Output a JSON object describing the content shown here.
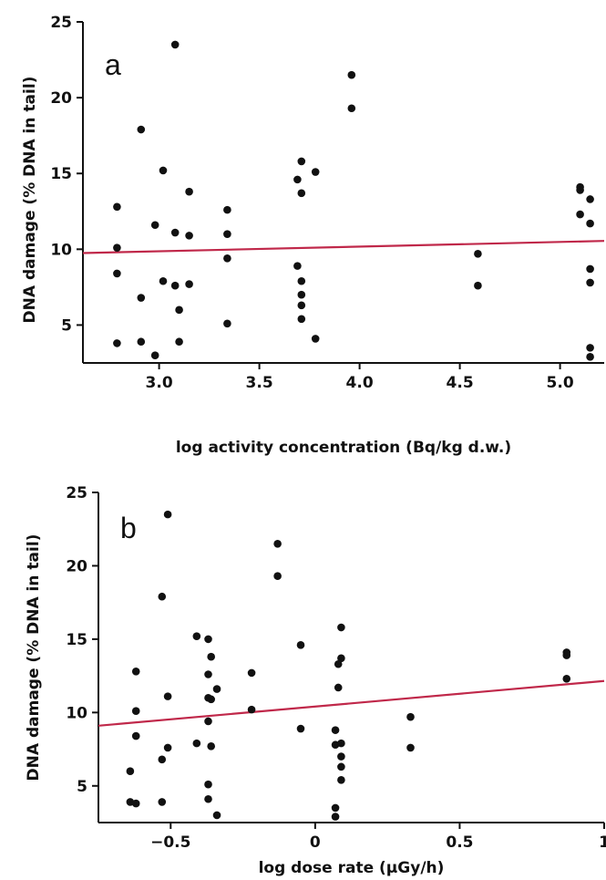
{
  "colors": {
    "point": "#111111",
    "fit_line": "#c0284a",
    "axis": "#111111"
  },
  "chart_data": [
    {
      "type": "scatter",
      "panel_label": "a",
      "xlabel": "log activity concentration (Bq/kg d.w.)",
      "ylabel": "DNA damage (% DNA in tail)",
      "xlim": [
        2.62,
        5.22
      ],
      "ylim": [
        2.5,
        25
      ],
      "xticks": [
        3.0,
        3.5,
        4.0,
        4.5,
        5.0
      ],
      "xtick_labels": [
        "3.0",
        "3.5",
        "4.0",
        "4.5",
        "5.0"
      ],
      "yticks": [
        5,
        10,
        15,
        20,
        25
      ],
      "ytick_labels": [
        "5",
        "10",
        "15",
        "20",
        "25"
      ],
      "grid": false,
      "fit_line": {
        "x": [
          2.62,
          5.22
        ],
        "y": [
          9.75,
          10.55
        ]
      },
      "points": [
        [
          2.79,
          12.8
        ],
        [
          2.79,
          10.1
        ],
        [
          2.79,
          8.4
        ],
        [
          2.79,
          3.8
        ],
        [
          2.91,
          17.9
        ],
        [
          2.91,
          6.8
        ],
        [
          2.91,
          3.9
        ],
        [
          2.98,
          11.6
        ],
        [
          2.98,
          3.0
        ],
        [
          3.02,
          15.2
        ],
        [
          3.02,
          7.9
        ],
        [
          3.08,
          23.5
        ],
        [
          3.08,
          11.1
        ],
        [
          3.08,
          7.6
        ],
        [
          3.1,
          6.0
        ],
        [
          3.1,
          3.9
        ],
        [
          3.15,
          13.8
        ],
        [
          3.15,
          10.9
        ],
        [
          3.15,
          7.7
        ],
        [
          3.34,
          12.6
        ],
        [
          3.34,
          11.0
        ],
        [
          3.34,
          9.4
        ],
        [
          3.34,
          5.1
        ],
        [
          3.69,
          14.6
        ],
        [
          3.69,
          8.9
        ],
        [
          3.71,
          15.8
        ],
        [
          3.71,
          13.7
        ],
        [
          3.71,
          7.9
        ],
        [
          3.71,
          7.0
        ],
        [
          3.71,
          6.3
        ],
        [
          3.71,
          5.4
        ],
        [
          3.78,
          15.1
        ],
        [
          3.78,
          4.1
        ],
        [
          3.96,
          21.5
        ],
        [
          3.96,
          19.3
        ],
        [
          4.59,
          9.7
        ],
        [
          4.59,
          7.6
        ],
        [
          5.1,
          14.1
        ],
        [
          5.1,
          13.9
        ],
        [
          5.1,
          12.3
        ],
        [
          5.15,
          13.3
        ],
        [
          5.15,
          11.7
        ],
        [
          5.15,
          8.7
        ],
        [
          5.15,
          7.8
        ],
        [
          5.15,
          3.5
        ],
        [
          5.15,
          2.9
        ]
      ]
    },
    {
      "type": "scatter",
      "panel_label": "b",
      "xlabel": "log dose rate (µGy/h)",
      "ylabel": "DNA damage (% DNA in tail)",
      "xlim": [
        -0.75,
        1.0
      ],
      "ylim": [
        2.5,
        25
      ],
      "xticks": [
        -0.5,
        0,
        0.5,
        1
      ],
      "xtick_labels": [
        "−0.5",
        "0",
        "0.5",
        "1"
      ],
      "yticks": [
        5,
        10,
        15,
        20,
        25
      ],
      "ytick_labels": [
        "5",
        "10",
        "15",
        "20",
        "25"
      ],
      "grid": false,
      "fit_line": {
        "x": [
          -0.75,
          1.0
        ],
        "y": [
          9.1,
          12.15
        ]
      },
      "points": [
        [
          -0.64,
          6.0
        ],
        [
          -0.64,
          3.9
        ],
        [
          -0.62,
          12.8
        ],
        [
          -0.62,
          10.1
        ],
        [
          -0.62,
          8.4
        ],
        [
          -0.62,
          3.8
        ],
        [
          -0.53,
          17.9
        ],
        [
          -0.53,
          6.8
        ],
        [
          -0.53,
          3.9
        ],
        [
          -0.51,
          23.5
        ],
        [
          -0.51,
          11.1
        ],
        [
          -0.51,
          7.6
        ],
        [
          -0.41,
          15.2
        ],
        [
          -0.41,
          7.9
        ],
        [
          -0.37,
          15.0
        ],
        [
          -0.37,
          12.6
        ],
        [
          -0.37,
          11.0
        ],
        [
          -0.37,
          9.4
        ],
        [
          -0.37,
          5.1
        ],
        [
          -0.37,
          4.1
        ],
        [
          -0.36,
          13.8
        ],
        [
          -0.36,
          10.9
        ],
        [
          -0.36,
          7.7
        ],
        [
          -0.34,
          11.6
        ],
        [
          -0.34,
          3.0
        ],
        [
          -0.22,
          12.7
        ],
        [
          -0.22,
          10.2
        ],
        [
          -0.13,
          21.5
        ],
        [
          -0.13,
          19.3
        ],
        [
          -0.05,
          14.6
        ],
        [
          -0.05,
          8.9
        ],
        [
          0.07,
          8.8
        ],
        [
          0.07,
          7.8
        ],
        [
          0.07,
          3.5
        ],
        [
          0.07,
          2.9
        ],
        [
          0.08,
          13.3
        ],
        [
          0.08,
          11.7
        ],
        [
          0.09,
          15.8
        ],
        [
          0.09,
          13.7
        ],
        [
          0.09,
          7.9
        ],
        [
          0.09,
          7.0
        ],
        [
          0.09,
          6.3
        ],
        [
          0.09,
          5.4
        ],
        [
          0.33,
          9.7
        ],
        [
          0.33,
          7.6
        ],
        [
          0.87,
          14.1
        ],
        [
          0.87,
          13.9
        ],
        [
          0.87,
          12.3
        ]
      ]
    }
  ]
}
